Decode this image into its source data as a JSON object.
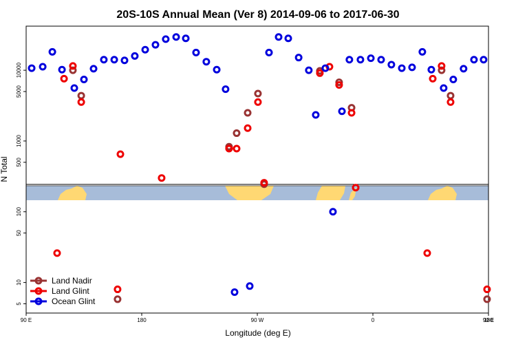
{
  "chart_data": {
    "type": "scatter",
    "title": "20S-10S Annual Mean (Ver 8)   2014-09-06 to 2017-06-30",
    "xlabel": "Longitude (deg E)",
    "ylabel": "N Total",
    "log_y": true,
    "legend": "lower left",
    "xlim": [
      90,
      450
    ],
    "xticks": [
      {
        "value": 90,
        "label": "90 E"
      },
      {
        "value": 180,
        "label": "180"
      },
      {
        "value": 270,
        "label": "90 W"
      },
      {
        "value": 360,
        "label": "0"
      },
      {
        "value": 450,
        "label": "90 E"
      },
      {
        "value": 540,
        "label": "180"
      }
    ],
    "ylim": [
      3.7,
      42000
    ],
    "yticks": [
      5,
      10,
      50,
      100,
      500,
      1000,
      5000,
      10000
    ],
    "series": [
      {
        "name": "Land Nadir",
        "color": "#993333",
        "x": [
          126.4,
          132.9,
          161.2,
          248,
          253.9,
          262.5,
          270.5,
          275.3,
          318.7,
          333.7,
          343.4,
          413.5,
          420.5,
          448.9
        ],
        "values": [
          10000,
          4370,
          5.8,
          830,
          1290,
          2500,
          4680,
          245,
          9800,
          6760,
          2950,
          10000,
          4370,
          5.8
        ]
      },
      {
        "name": "Land Glint",
        "color": "#ee0000",
        "x": [
          114.1,
          119.5,
          126.4,
          132.9,
          163.4,
          161.2,
          195.5,
          248,
          253.9,
          262.5,
          270.5,
          275.3,
          318.7,
          326.2,
          333.7,
          343.4,
          346.6,
          402.3,
          406.6,
          413.5,
          420.5,
          448.9
        ],
        "values": [
          26,
          7600,
          11500,
          3550,
          650,
          8,
          300,
          780,
          780,
          1520,
          3550,
          257,
          9100,
          11200,
          6200,
          2500,
          219,
          26,
          7600,
          11500,
          3550,
          8
        ]
      },
      {
        "name": "Ocean Glint",
        "color": "#0000dd",
        "x": [
          94.3,
          102.9,
          110.4,
          117.9,
          127.5,
          135,
          142.5,
          150.5,
          158.6,
          166.6,
          174.6,
          182.7,
          190.7,
          198.7,
          206.8,
          214.3,
          222.3,
          230.3,
          238.4,
          245.3,
          279.1,
          286.6,
          294.1,
          302.2,
          310.1,
          315.5,
          323,
          328.9,
          335.9,
          341.7,
          350.3,
          358.4,
          366.4,
          374.4,
          382.5,
          390.5,
          398.5,
          405.5,
          415.1,
          422.6,
          430.6,
          438.7,
          446.2,
          252.3,
          264.1
        ],
        "values": [
          10700,
          11200,
          18200,
          10200,
          5600,
          7400,
          10500,
          14100,
          14100,
          13800,
          15900,
          19500,
          22900,
          27500,
          29500,
          28200,
          17800,
          13200,
          10200,
          5400,
          17800,
          29500,
          28200,
          15100,
          10000,
          2340,
          10700,
          100,
          2630,
          14100,
          14100,
          14800,
          14100,
          12000,
          10700,
          11000,
          18200,
          10200,
          5600,
          7400,
          10500,
          14100,
          14100,
          7.3,
          8.9
        ]
      }
    ]
  }
}
